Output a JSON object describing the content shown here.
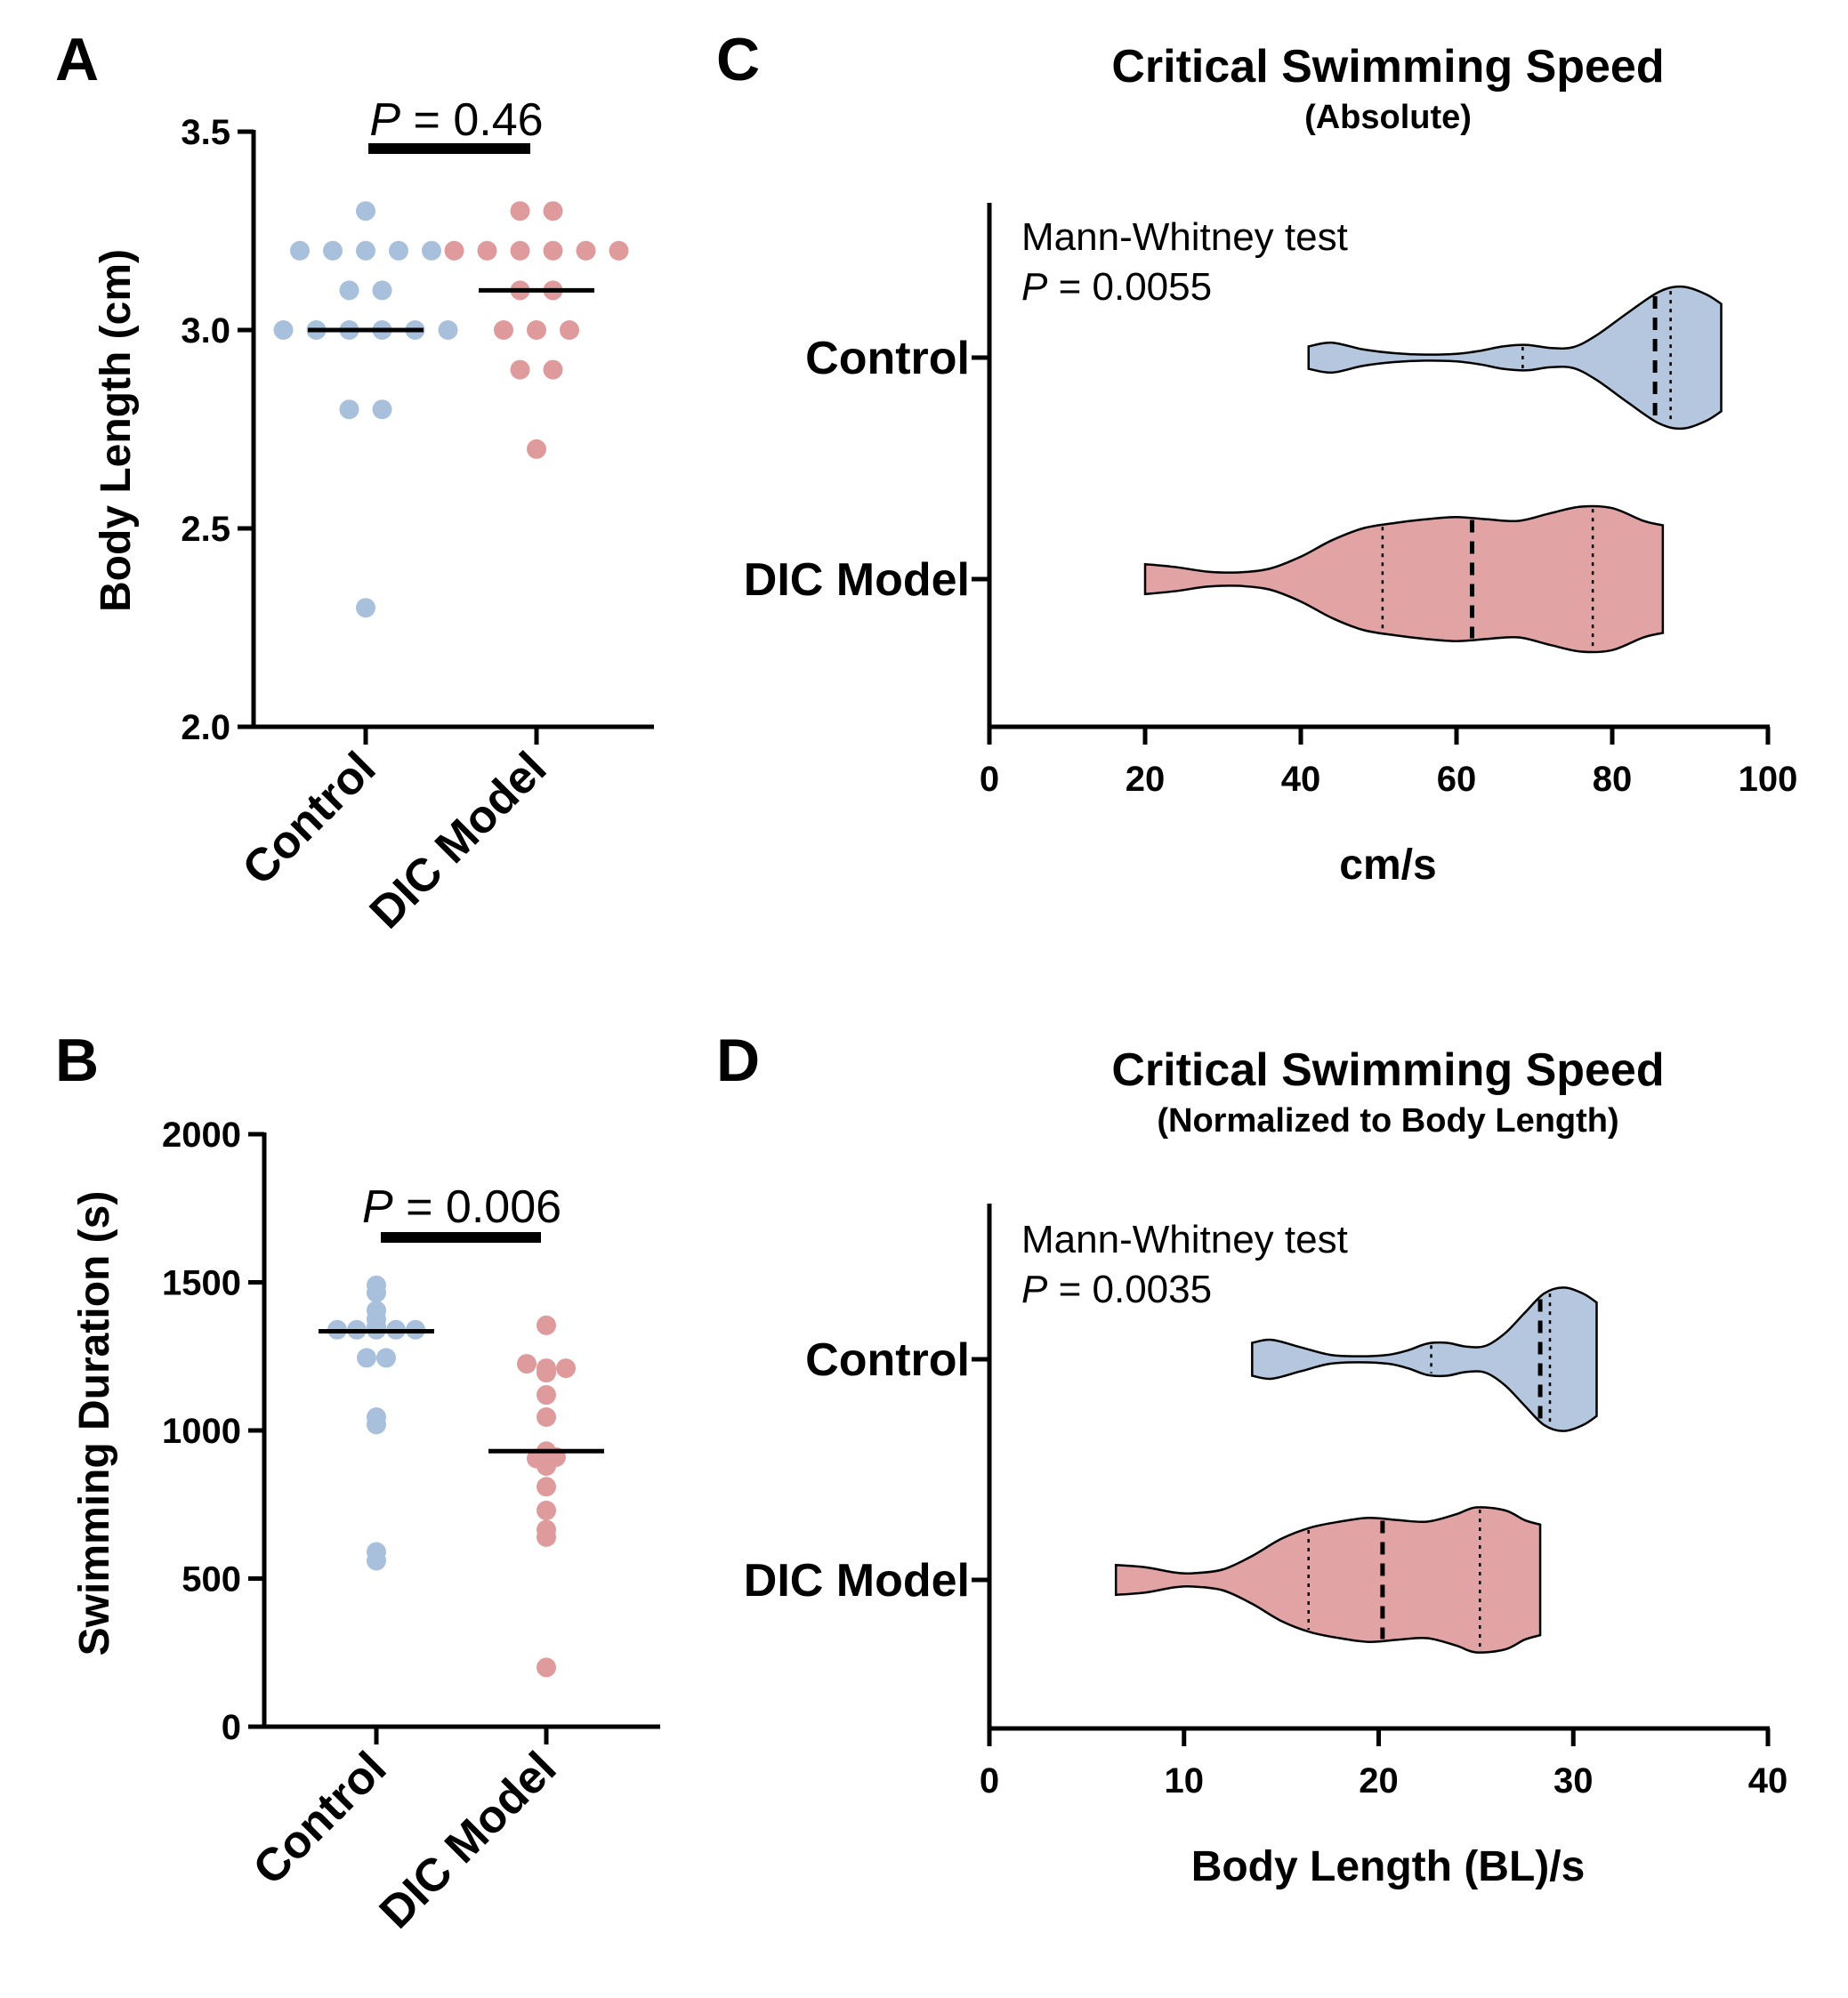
{
  "colors": {
    "control_fill": "#b4c7df",
    "dic_fill": "#e2a3a5",
    "control_dot": "#a9c0dc",
    "dic_dot": "#df9a9c",
    "axis": "#000000"
  },
  "chart_data": [
    {
      "panel": "A",
      "type": "scatter",
      "ylabel": "Body Length (cm)",
      "categories": [
        "Control",
        "DIC Model"
      ],
      "ylim": [
        2.0,
        3.5
      ],
      "yticks": [
        "2.0",
        "2.5",
        "3.0",
        "3.5"
      ],
      "annotation": {
        "p_italic": "P",
        "text": " = 0.46"
      },
      "series": [
        {
          "name": "Control",
          "values": [
            3.3,
            3.2,
            3.2,
            3.2,
            3.2,
            3.2,
            3.1,
            3.1,
            3.0,
            3.0,
            3.0,
            3.0,
            3.0,
            3.0,
            2.8,
            2.8,
            2.3
          ],
          "median": 3.0
        },
        {
          "name": "DIC Model",
          "values": [
            3.3,
            3.3,
            3.2,
            3.2,
            3.2,
            3.2,
            3.2,
            3.2,
            3.1,
            3.1,
            3.0,
            3.0,
            3.0,
            2.9,
            2.9,
            2.7
          ],
          "median": 3.1
        }
      ]
    },
    {
      "panel": "B",
      "type": "scatter",
      "ylabel": "Swimming  Duration (s)",
      "categories": [
        "Control",
        "DIC Model"
      ],
      "ylim": [
        0,
        2000
      ],
      "yticks": [
        "0",
        "500",
        "1000",
        "1500",
        "2000"
      ],
      "annotation": {
        "p_italic": "P",
        "text": " = 0.006"
      },
      "series": [
        {
          "name": "Control",
          "values": [
            1490,
            1465,
            1405,
            1375,
            1340,
            1340,
            1340,
            1340,
            1340,
            1350,
            1245,
            1245,
            1045,
            1020,
            590,
            560
          ],
          "median": 1335
        },
        {
          "name": "DIC Model",
          "values": [
            1355,
            1225,
            1210,
            1195,
            1210,
            1120,
            1045,
            930,
            905,
            880,
            910,
            810,
            730,
            665,
            640,
            200
          ],
          "median": 930
        }
      ]
    },
    {
      "panel": "C",
      "type": "violin",
      "title": "Critical Swimming Speed",
      "subtitle": "(Absolute)",
      "xlabel": "cm/s",
      "xlim": [
        0,
        100
      ],
      "xticks": [
        "0",
        "20",
        "40",
        "60",
        "80",
        "100"
      ],
      "annotation": {
        "line1": "Mann-Whitney test",
        "p_italic": "P",
        "text": " = 0.0055"
      },
      "series": [
        {
          "name": "Control",
          "min": 41,
          "max": 94,
          "median": 85.5,
          "q1": 68.5,
          "q3": 87.5,
          "profile": [
            [
              41,
              0.15
            ],
            [
              44,
              0.2
            ],
            [
              48,
              0.11
            ],
            [
              52,
              0.06
            ],
            [
              56,
              0.04
            ],
            [
              60,
              0.05
            ],
            [
              63,
              0.09
            ],
            [
              66,
              0.15
            ],
            [
              69,
              0.17
            ],
            [
              72,
              0.13
            ],
            [
              75,
              0.14
            ],
            [
              78,
              0.3
            ],
            [
              82,
              0.6
            ],
            [
              86,
              0.88
            ],
            [
              89,
              0.95
            ],
            [
              92,
              0.85
            ],
            [
              94,
              0.72
            ]
          ]
        },
        {
          "name": "DIC Model",
          "min": 20,
          "max": 86.5,
          "median": 62,
          "q1": 50.5,
          "q3": 77.5,
          "profile": [
            [
              20,
              0.2
            ],
            [
              24,
              0.16
            ],
            [
              28,
              0.1
            ],
            [
              32,
              0.09
            ],
            [
              36,
              0.14
            ],
            [
              40,
              0.3
            ],
            [
              44,
              0.52
            ],
            [
              48,
              0.68
            ],
            [
              52,
              0.75
            ],
            [
              56,
              0.8
            ],
            [
              60,
              0.83
            ],
            [
              64,
              0.8
            ],
            [
              68,
              0.78
            ],
            [
              72,
              0.88
            ],
            [
              76,
              0.97
            ],
            [
              80,
              0.95
            ],
            [
              84,
              0.78
            ],
            [
              86.5,
              0.72
            ]
          ]
        }
      ]
    },
    {
      "panel": "D",
      "type": "violin",
      "title": "Critical Swimming Speed",
      "subtitle": "(Normalized to Body  Length)",
      "xlabel": "Body Length (BL)/s",
      "xlim": [
        0,
        40
      ],
      "xticks": [
        "0",
        "10",
        "20",
        "30",
        "40"
      ],
      "annotation": {
        "line1": "Mann-Whitney test",
        "p_italic": "P",
        "text": " = 0.0035"
      },
      "series": [
        {
          "name": "Control",
          "min": 13.5,
          "max": 31.2,
          "median": 28.3,
          "q1": 22.7,
          "q3": 28.8,
          "profile": [
            [
              13.5,
              0.22
            ],
            [
              14.5,
              0.26
            ],
            [
              16,
              0.16
            ],
            [
              17.5,
              0.06
            ],
            [
              19,
              0.04
            ],
            [
              20.5,
              0.06
            ],
            [
              21.5,
              0.12
            ],
            [
              22.5,
              0.21
            ],
            [
              23.5,
              0.22
            ],
            [
              24.5,
              0.17
            ],
            [
              25.5,
              0.18
            ],
            [
              26.5,
              0.35
            ],
            [
              27.5,
              0.62
            ],
            [
              28.5,
              0.88
            ],
            [
              29.5,
              0.96
            ],
            [
              30.5,
              0.88
            ],
            [
              31.2,
              0.76
            ]
          ]
        },
        {
          "name": "DIC Model",
          "min": 6.5,
          "max": 28.3,
          "median": 20.2,
          "q1": 16.4,
          "q3": 25.2,
          "profile": [
            [
              6.5,
              0.2
            ],
            [
              8,
              0.17
            ],
            [
              9.5,
              0.1
            ],
            [
              10.5,
              0.09
            ],
            [
              12,
              0.14
            ],
            [
              13.5,
              0.32
            ],
            [
              15,
              0.55
            ],
            [
              16.5,
              0.7
            ],
            [
              18,
              0.78
            ],
            [
              19.5,
              0.83
            ],
            [
              21,
              0.8
            ],
            [
              22.5,
              0.78
            ],
            [
              24,
              0.88
            ],
            [
              25,
              0.97
            ],
            [
              26.5,
              0.93
            ],
            [
              27.5,
              0.8
            ],
            [
              28.3,
              0.74
            ]
          ]
        }
      ]
    }
  ]
}
